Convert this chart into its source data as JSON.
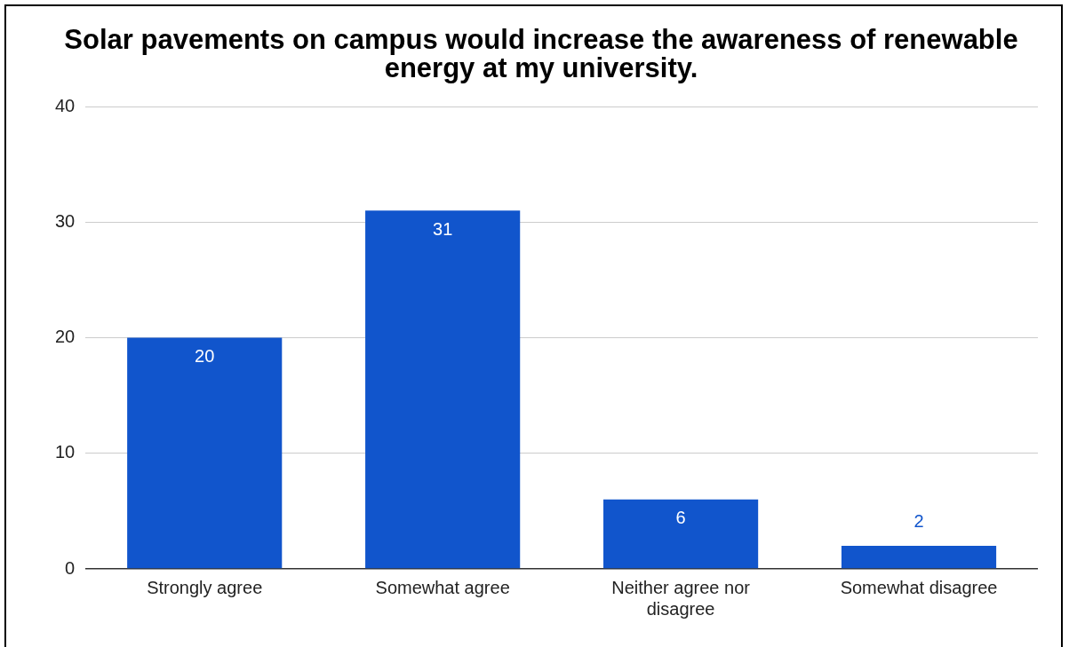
{
  "chart_data": {
    "type": "bar",
    "title": "Solar pavements on campus would increase the awareness of renewable energy at my university.",
    "categories": [
      "Strongly agree",
      "Somewhat agree",
      "Neither agree nor disagree",
      "Somewhat disagree"
    ],
    "values": [
      20,
      31,
      6,
      2
    ],
    "color": "#1155cc",
    "ylim": [
      0,
      40
    ],
    "yticks": [
      0,
      10,
      20,
      30,
      40
    ],
    "grid": "y",
    "legend": false,
    "data_labels": true
  }
}
